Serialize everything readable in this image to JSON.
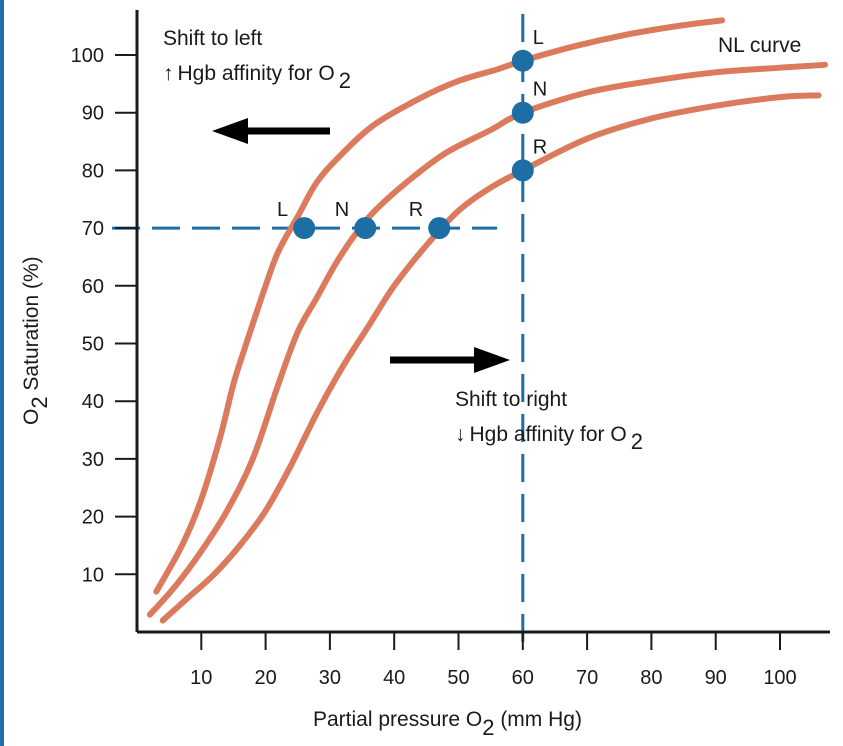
{
  "chart_data": {
    "type": "line",
    "title": "",
    "xlabel": {
      "prefix": "Partial pressure O",
      "sub": "2",
      "suffix": " (mm Hg)"
    },
    "ylabel": {
      "prefix": "O",
      "sub": "2",
      "suffix": " Saturation (%)"
    },
    "xlim": [
      0,
      107
    ],
    "ylim": [
      0,
      110
    ],
    "xticks": [
      10,
      20,
      30,
      40,
      50,
      60,
      70,
      80,
      90,
      100
    ],
    "yticks": [
      10,
      20,
      30,
      40,
      50,
      60,
      70,
      80,
      90,
      100
    ],
    "grid": false,
    "series": [
      {
        "id": "left",
        "color": "#db7a5c",
        "x": [
          3,
          7,
          10,
          13,
          15,
          17,
          20,
          22,
          25,
          28,
          32,
          37,
          44,
          50,
          56,
          60,
          68,
          76,
          84,
          91
        ],
        "y": [
          7,
          15,
          23,
          34,
          43,
          50,
          60,
          66,
          72,
          78,
          83,
          88,
          92.5,
          95.5,
          97.5,
          99,
          101.5,
          103.5,
          105,
          106
        ]
      },
      {
        "id": "normal",
        "name": "NL curve",
        "color": "#db7a5c",
        "x": [
          2,
          6,
          10,
          14,
          18,
          22,
          25,
          28,
          31,
          34,
          37,
          42,
          48,
          55,
          60,
          70,
          80,
          90,
          100,
          107
        ],
        "y": [
          3,
          8,
          14,
          21,
          30,
          43,
          52,
          58,
          64,
          69,
          73,
          78,
          83,
          87,
          90,
          93.5,
          95.5,
          97,
          97.8,
          98.3
        ]
      },
      {
        "id": "right",
        "color": "#db7a5c",
        "x": [
          4,
          8,
          12,
          16,
          20,
          24,
          28,
          32,
          36,
          40,
          45,
          50,
          55,
          60,
          70,
          80,
          90,
          100,
          106
        ],
        "y": [
          2,
          6,
          10,
          15,
          21,
          29,
          38,
          46,
          53,
          60,
          67,
          73,
          77,
          80,
          85.5,
          89,
          91.2,
          92.7,
          93
        ]
      }
    ],
    "reference_lines": {
      "color": "#1c6ea4",
      "horizontal": {
        "y": 70,
        "x_from": 0,
        "x_to": 56
      },
      "vertical": {
        "x": 60,
        "y_from": 0,
        "y_to": 110
      }
    },
    "points": [
      {
        "label": "L",
        "x": 26,
        "y": 70
      },
      {
        "label": "N",
        "x": 35.5,
        "y": 70
      },
      {
        "label": "R",
        "x": 47,
        "y": 70
      },
      {
        "label": "L",
        "x": 60,
        "y": 99
      },
      {
        "label": "N",
        "x": 60,
        "y": 90
      },
      {
        "label": "R",
        "x": 60,
        "y": 80
      }
    ],
    "point_color": "#1c6ea4",
    "annotations": {
      "shift_left_title": "Shift to left",
      "shift_left_arrow": "↑",
      "shift_left_text": "Hgb affinity for O",
      "shift_left_sub": "2",
      "shift_right_title": "Shift to right",
      "shift_right_arrow": "↓",
      "shift_right_text": "Hgb affinity for O",
      "shift_right_sub": "2",
      "nl_curve_label": "NL curve"
    }
  }
}
